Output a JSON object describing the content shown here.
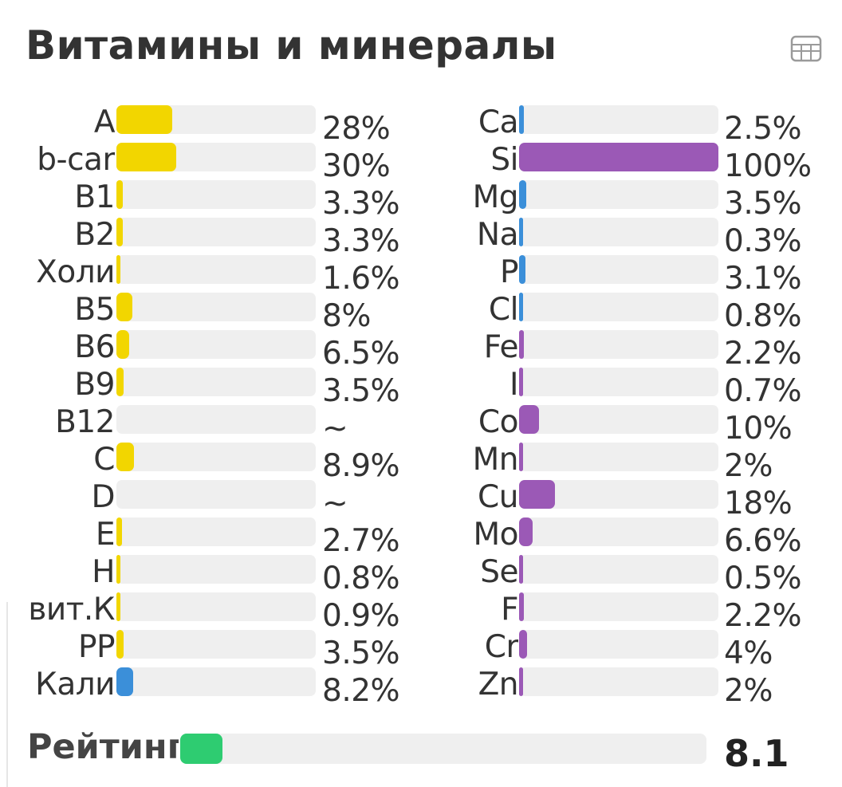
{
  "title": "Витамины и минералы",
  "icons": {
    "table": "table-icon"
  },
  "colors": {
    "vitamin": "#f2d600",
    "mineral": "#9b59b6",
    "blue": "#3b8fd9",
    "rating": "#2ecc71"
  },
  "vitamins": [
    {
      "label": "A",
      "value": "28%",
      "fraction": 0.28,
      "color": "yellow"
    },
    {
      "label": "b-car",
      "value": "30%",
      "fraction": 0.3,
      "color": "yellow"
    },
    {
      "label": "B1",
      "value": "3.3%",
      "fraction": 0.033,
      "color": "yellow"
    },
    {
      "label": "B2",
      "value": "3.3%",
      "fraction": 0.033,
      "color": "yellow"
    },
    {
      "label": "Холи",
      "value": "1.6%",
      "fraction": 0.016,
      "color": "yellow"
    },
    {
      "label": "B5",
      "value": "8%",
      "fraction": 0.08,
      "color": "yellow"
    },
    {
      "label": "B6",
      "value": "6.5%",
      "fraction": 0.065,
      "color": "yellow"
    },
    {
      "label": "B9",
      "value": "3.5%",
      "fraction": 0.035,
      "color": "yellow"
    },
    {
      "label": "B12",
      "value": "~",
      "fraction": 0,
      "color": "yellow"
    },
    {
      "label": "C",
      "value": "8.9%",
      "fraction": 0.089,
      "color": "yellow"
    },
    {
      "label": "D",
      "value": "~",
      "fraction": 0,
      "color": "yellow"
    },
    {
      "label": "E",
      "value": "2.7%",
      "fraction": 0.027,
      "color": "yellow"
    },
    {
      "label": "H",
      "value": "0.8%",
      "fraction": 0.008,
      "color": "yellow"
    },
    {
      "label": "вит.К",
      "value": "0.9%",
      "fraction": 0.009,
      "color": "yellow"
    },
    {
      "label": "PP",
      "value": "3.5%",
      "fraction": 0.035,
      "color": "yellow"
    },
    {
      "label": "Кали",
      "value": "8.2%",
      "fraction": 0.082,
      "color": "blue"
    }
  ],
  "minerals": [
    {
      "label": "Ca",
      "value": "2.5%",
      "fraction": 0.025,
      "color": "blue"
    },
    {
      "label": "Si",
      "value": "100%",
      "fraction": 1.0,
      "color": "purple"
    },
    {
      "label": "Mg",
      "value": "3.5%",
      "fraction": 0.035,
      "color": "blue"
    },
    {
      "label": "Na",
      "value": "0.3%",
      "fraction": 0.003,
      "color": "blue"
    },
    {
      "label": "P",
      "value": "3.1%",
      "fraction": 0.031,
      "color": "blue"
    },
    {
      "label": "Cl",
      "value": "0.8%",
      "fraction": 0.008,
      "color": "blue"
    },
    {
      "label": "Fe",
      "value": "2.2%",
      "fraction": 0.022,
      "color": "purple"
    },
    {
      "label": "I",
      "value": "0.7%",
      "fraction": 0.007,
      "color": "purple"
    },
    {
      "label": "Co",
      "value": "10%",
      "fraction": 0.1,
      "color": "purple"
    },
    {
      "label": "Mn",
      "value": "2%",
      "fraction": 0.02,
      "color": "purple"
    },
    {
      "label": "Cu",
      "value": "18%",
      "fraction": 0.18,
      "color": "purple"
    },
    {
      "label": "Mo",
      "value": "6.6%",
      "fraction": 0.066,
      "color": "purple"
    },
    {
      "label": "Se",
      "value": "0.5%",
      "fraction": 0.005,
      "color": "purple"
    },
    {
      "label": "F",
      "value": "2.2%",
      "fraction": 0.022,
      "color": "purple"
    },
    {
      "label": "Cr",
      "value": "4%",
      "fraction": 0.04,
      "color": "purple"
    },
    {
      "label": "Zn",
      "value": "2%",
      "fraction": 0.02,
      "color": "purple"
    }
  ],
  "rating": {
    "label": "Рейтинг",
    "value": "8.1",
    "fraction": 0.08
  }
}
